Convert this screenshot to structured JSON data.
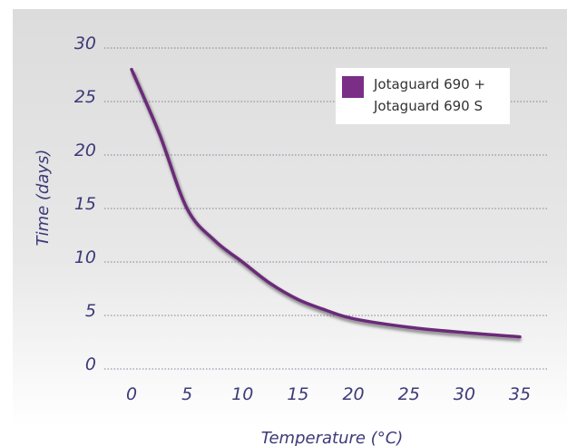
{
  "chart_data": {
    "type": "line",
    "title": "",
    "xlabel": "Temperature (°C)",
    "ylabel": "Time (days)",
    "xlim": [
      0,
      35
    ],
    "ylim": [
      0,
      30
    ],
    "x_ticks": [
      0,
      5,
      10,
      15,
      20,
      25,
      30,
      35
    ],
    "y_ticks": [
      0,
      5,
      10,
      15,
      20,
      25,
      30
    ],
    "grid": "horizontal dotted",
    "legend": {
      "placement": "top-right",
      "lines": [
        "Jotaguard 690 +",
        "Jotaguard 690 S"
      ]
    },
    "series": [
      {
        "name": "Jotaguard 690 + Jotaguard 690 S",
        "color": "#6b2a7a",
        "x": [
          0,
          2.5,
          5,
          7.5,
          10,
          12.5,
          15,
          17.5,
          20,
          25,
          30,
          35
        ],
        "y": [
          28,
          22,
          15,
          12,
          10,
          8,
          6.5,
          5.5,
          4.7,
          3.9,
          3.4,
          3
        ]
      }
    ]
  }
}
